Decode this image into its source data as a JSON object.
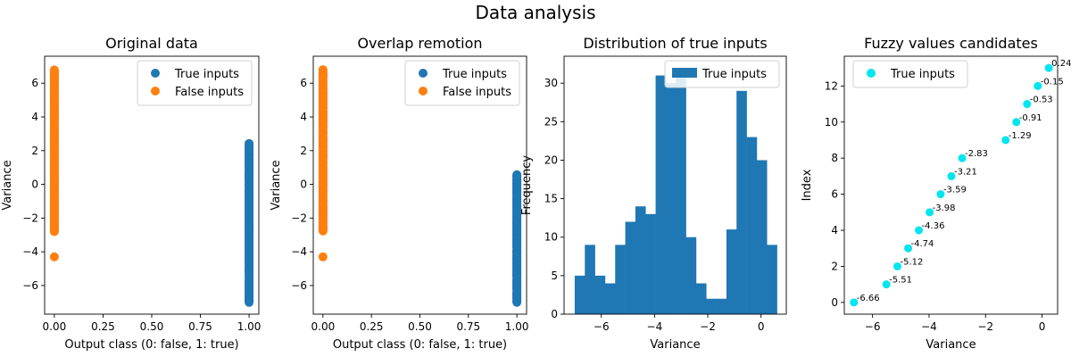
{
  "figure": {
    "title": "Data analysis"
  },
  "colors": {
    "blue": "#1f77b4",
    "orange": "#ff7f0e",
    "cyan": "#00e5ee"
  },
  "chart_data": [
    {
      "type": "scatter",
      "title": "Original data",
      "xlabel": "Output class (0: false, 1: true)",
      "ylabel": "Variance",
      "xlim": [
        -0.05,
        1.05
      ],
      "ylim": [
        -7.7,
        7.6
      ],
      "xticks": [
        0.0,
        0.25,
        0.5,
        0.75,
        1.0
      ],
      "xtick_labels": [
        "0.00",
        "0.25",
        "0.50",
        "0.75",
        "1.00"
      ],
      "yticks": [
        -6,
        -4,
        -2,
        0,
        2,
        4,
        6
      ],
      "legend": {
        "placement": "upper right",
        "entries": [
          "True inputs",
          "False inputs"
        ]
      },
      "series": [
        {
          "name": "True inputs",
          "color": "#1f77b4",
          "x": 1,
          "y_min": -7.0,
          "y_max": 2.4
        },
        {
          "name": "False inputs",
          "color": "#ff7f0e",
          "x": 0,
          "y_min": -2.8,
          "y_max": 6.8,
          "outliers": [
            -4.3
          ]
        }
      ]
    },
    {
      "type": "scatter",
      "title": "Overlap remotion",
      "xlabel": "Output class (0: false, 1: true)",
      "ylabel": "Variance",
      "xlim": [
        -0.05,
        1.05
      ],
      "ylim": [
        -7.7,
        7.6
      ],
      "xticks": [
        0.0,
        0.25,
        0.5,
        0.75,
        1.0
      ],
      "xtick_labels": [
        "0.00",
        "0.25",
        "0.50",
        "0.75",
        "1.00"
      ],
      "yticks": [
        -6,
        -4,
        -2,
        0,
        2,
        4,
        6
      ],
      "legend": {
        "placement": "upper right",
        "entries": [
          "True inputs",
          "False inputs"
        ]
      },
      "series": [
        {
          "name": "True inputs",
          "color": "#1f77b4",
          "x": 1,
          "y_min": -7.0,
          "y_max": 0.6
        },
        {
          "name": "False inputs",
          "color": "#ff7f0e",
          "x": 0,
          "y_min": -2.8,
          "y_max": 6.8,
          "outliers": [
            -4.3
          ]
        }
      ]
    },
    {
      "type": "bar",
      "title": "Distribution of true inputs",
      "xlabel": "Variance",
      "ylabel": "Frequency",
      "xlim": [
        -7.4,
        0.95
      ],
      "ylim": [
        0,
        33.5
      ],
      "xticks": [
        -6,
        -4,
        -2,
        0
      ],
      "yticks": [
        0,
        5,
        10,
        15,
        20,
        25,
        30
      ],
      "legend": {
        "placement": "upper right",
        "entries": [
          "True inputs"
        ]
      },
      "bin_start": -7.0,
      "bin_width": 0.38,
      "values": [
        5,
        9,
        5,
        4,
        9,
        12,
        14,
        13,
        31,
        30,
        31,
        10,
        4,
        2,
        2,
        11,
        29,
        23,
        20,
        9
      ],
      "series": [
        {
          "name": "True inputs",
          "color": "#1f77b4"
        }
      ]
    },
    {
      "type": "scatter",
      "title": "Fuzzy values candidates",
      "xlabel": "Variance",
      "ylabel": "Index",
      "xlim": [
        -7.0,
        0.55
      ],
      "ylim": [
        -0.65,
        13.65
      ],
      "xticks": [
        -6,
        -4,
        -2,
        0
      ],
      "yticks": [
        0,
        2,
        4,
        6,
        8,
        10,
        12
      ],
      "legend": {
        "placement": "upper left",
        "entries": [
          "True inputs"
        ]
      },
      "series": [
        {
          "name": "True inputs",
          "color": "#00e5ee"
        }
      ],
      "points": [
        {
          "x": -6.66,
          "y": 0,
          "label": "-6.66"
        },
        {
          "x": -5.51,
          "y": 1,
          "label": "-5.51"
        },
        {
          "x": -5.12,
          "y": 2,
          "label": "-5.12"
        },
        {
          "x": -4.74,
          "y": 3,
          "label": "-4.74"
        },
        {
          "x": -4.36,
          "y": 4,
          "label": "-4.36"
        },
        {
          "x": -3.98,
          "y": 5,
          "label": "-3.98"
        },
        {
          "x": -3.59,
          "y": 6,
          "label": "-3.59"
        },
        {
          "x": -3.21,
          "y": 7,
          "label": "-3.21"
        },
        {
          "x": -2.83,
          "y": 8,
          "label": "-2.83"
        },
        {
          "x": -1.29,
          "y": 9,
          "label": "-1.29"
        },
        {
          "x": -0.91,
          "y": 10,
          "label": "-0.91"
        },
        {
          "x": -0.53,
          "y": 11,
          "label": "-0.53"
        },
        {
          "x": -0.15,
          "y": 12,
          "label": "-0.15"
        },
        {
          "x": 0.24,
          "y": 13,
          "label": "0.24"
        }
      ]
    }
  ]
}
